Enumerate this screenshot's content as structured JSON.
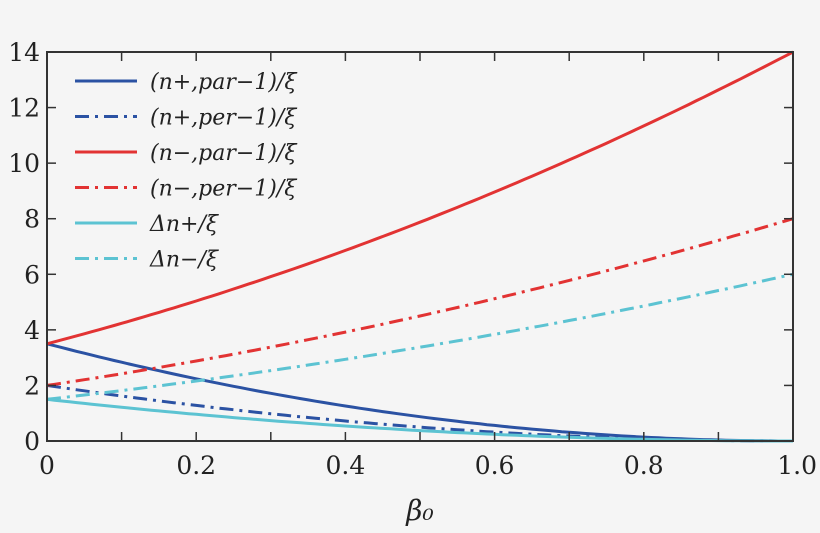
{
  "chart_data": {
    "type": "line",
    "title": "",
    "xlabel": "β₀",
    "ylabel": "",
    "xlim": [
      0,
      1.0
    ],
    "ylim": [
      0,
      14
    ],
    "grid": false,
    "legend_position": "top-left",
    "x_ticks": [
      "0",
      "0.2",
      "0.4",
      "0.6",
      "0.8",
      "1.0"
    ],
    "y_ticks": [
      "0",
      "2",
      "4",
      "6",
      "8",
      "10",
      "12",
      "14"
    ],
    "x": [
      0,
      0.1,
      0.2,
      0.3,
      0.4,
      0.5,
      0.6,
      0.7,
      0.8,
      0.9,
      1.0
    ],
    "series": [
      {
        "name": "(n+,par−1)/ξ",
        "color": "#2b52a3",
        "style": "solid",
        "values": [
          3.5,
          2.835,
          2.24,
          1.715,
          1.26,
          0.875,
          0.56,
          0.315,
          0.14,
          0.035,
          0
        ]
      },
      {
        "name": "(n+,per−1)/ξ",
        "color": "#2b52a3",
        "style": "dashdot",
        "values": [
          2.0,
          1.62,
          1.28,
          0.98,
          0.72,
          0.5,
          0.32,
          0.18,
          0.08,
          0.02,
          0
        ]
      },
      {
        "name": "(n−,par−1)/ξ",
        "color": "#e23333",
        "style": "solid",
        "values": [
          3.5,
          4.235,
          5.04,
          5.915,
          6.86,
          7.875,
          8.96,
          10.115,
          11.34,
          12.635,
          14.0
        ]
      },
      {
        "name": "(n−,per−1)/ξ",
        "color": "#e23333",
        "style": "dashdot",
        "values": [
          2.0,
          2.42,
          2.88,
          3.38,
          3.92,
          4.5,
          5.12,
          5.78,
          6.48,
          7.22,
          8.0
        ]
      },
      {
        "name": "Δn+/ξ",
        "color": "#5cc3d2",
        "style": "solid",
        "values": [
          1.5,
          1.215,
          0.96,
          0.735,
          0.54,
          0.375,
          0.24,
          0.135,
          0.06,
          0.015,
          0
        ]
      },
      {
        "name": "Δn−/ξ",
        "color": "#5cc3d2",
        "style": "dashdot",
        "values": [
          1.5,
          1.815,
          2.16,
          2.535,
          2.94,
          3.375,
          3.84,
          4.335,
          4.86,
          5.415,
          6.0
        ]
      }
    ]
  }
}
